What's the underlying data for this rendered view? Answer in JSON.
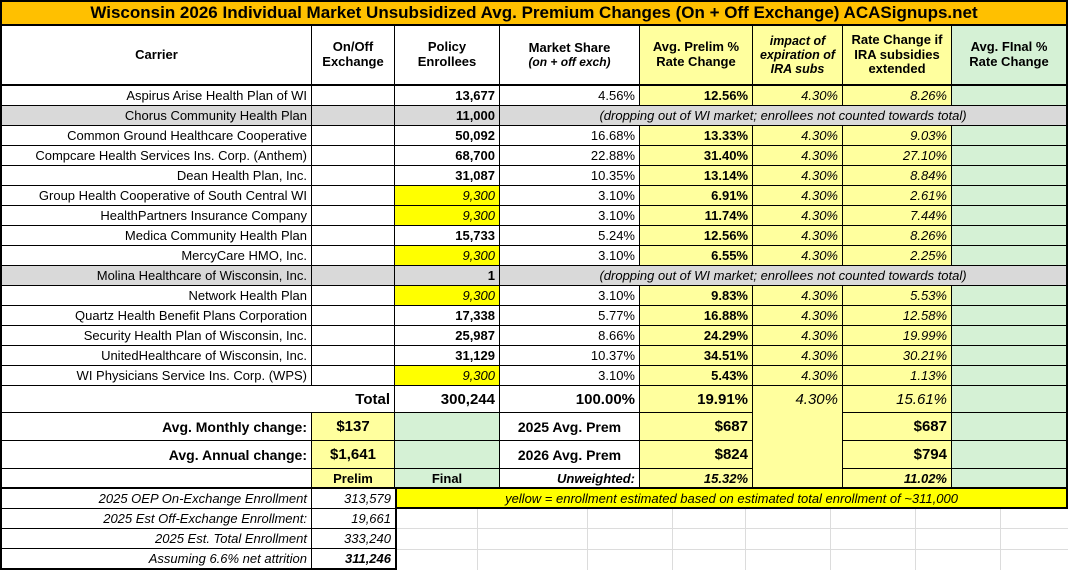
{
  "title": "Wisconsin 2026 Individual Market Unsubsidized Avg. Premium Changes (On + Off Exchange) ACASignups.net",
  "colors": {
    "title_bar": "#FFC000",
    "light_yellow": "#FFFF9E",
    "bright_yellow": "#FFFF00",
    "pale_green": "#D5F1D5",
    "row_gray": "#D9D9D9"
  },
  "columns": {
    "carrier": "Carrier",
    "onoff": "On/Off Exchange",
    "enrollees": "Policy Enrollees",
    "share_main": "Market Share",
    "share_sub": "(on + off exch)",
    "prelim": "Avg. Prelim % Rate Change",
    "impact": "impact of expiration of IRA subs",
    "extended": "Rate Change if IRA subsidies extended",
    "final": "Avg. FInal % Rate Change"
  },
  "dropped_note": "(dropping out of WI market; enrollees not counted towards total)",
  "rows": [
    {
      "carrier": "Aspirus Arise Health Plan of WI",
      "enrollees": "13,677",
      "share": "4.56%",
      "prelim": "12.56%",
      "impact": "4.30%",
      "extended": "8.26%"
    },
    {
      "carrier": "Chorus Community Health Plan",
      "enrollees": "11,000",
      "dropped": true,
      "comment": true
    },
    {
      "carrier": "Common Ground Healthcare Cooperative",
      "enrollees": "50,092",
      "share": "16.68%",
      "prelim": "13.33%",
      "impact": "4.30%",
      "extended": "9.03%"
    },
    {
      "carrier": "Compcare Health Services Ins. Corp. (Anthem)",
      "enrollees": "68,700",
      "share": "22.88%",
      "prelim": "31.40%",
      "impact": "4.30%",
      "extended": "27.10%"
    },
    {
      "carrier": "Dean Health Plan, Inc.",
      "enrollees": "31,087",
      "share": "10.35%",
      "prelim": "13.14%",
      "impact": "4.30%",
      "extended": "8.84%"
    },
    {
      "carrier": "Group Health Cooperative of South Central WI",
      "enrollees": "9,300",
      "est": true,
      "share": "3.10%",
      "prelim": "6.91%",
      "impact": "4.30%",
      "extended": "2.61%"
    },
    {
      "carrier": "HealthPartners Insurance Company",
      "enrollees": "9,300",
      "est": true,
      "share": "3.10%",
      "prelim": "11.74%",
      "impact": "4.30%",
      "extended": "7.44%"
    },
    {
      "carrier": "Medica Community Health Plan",
      "enrollees": "15,733",
      "share": "5.24%",
      "prelim": "12.56%",
      "impact": "4.30%",
      "extended": "8.26%"
    },
    {
      "carrier": "MercyCare HMO, Inc.",
      "enrollees": "9,300",
      "est": true,
      "share": "3.10%",
      "prelim": "6.55%",
      "impact": "4.30%",
      "extended": "2.25%"
    },
    {
      "carrier": "Molina Healthcare of Wisconsin, Inc.",
      "enrollees": "1",
      "dropped": true
    },
    {
      "carrier": "Network Health Plan",
      "enrollees": "9,300",
      "est": true,
      "share": "3.10%",
      "prelim": "9.83%",
      "impact": "4.30%",
      "extended": "5.53%"
    },
    {
      "carrier": "Quartz Health Benefit Plans Corporation",
      "enrollees": "17,338",
      "share": "5.77%",
      "prelim": "16.88%",
      "impact": "4.30%",
      "extended": "12.58%"
    },
    {
      "carrier": "Security Health Plan of Wisconsin, Inc.",
      "enrollees": "25,987",
      "share": "8.66%",
      "prelim": "24.29%",
      "impact": "4.30%",
      "extended": "19.99%"
    },
    {
      "carrier": "UnitedHealthcare of Wisconsin, Inc.",
      "enrollees": "31,129",
      "share": "10.37%",
      "prelim": "34.51%",
      "impact": "4.30%",
      "extended": "30.21%"
    },
    {
      "carrier": "WI Physicians Service Ins. Corp. (WPS)",
      "enrollees": "9,300",
      "est": true,
      "share": "3.10%",
      "prelim": "5.43%",
      "impact": "4.30%",
      "extended": "1.13%"
    }
  ],
  "total": {
    "label": "Total",
    "enrollees": "300,244",
    "share": "100.00%",
    "prelim": "19.91%",
    "impact": "4.30%",
    "extended": "15.61%"
  },
  "summary": {
    "monthly_label": "Avg. Monthly change:",
    "monthly": "$137",
    "annual_label": "Avg. Annual change:",
    "annual": "$1,641",
    "prelim_label": "Prelim",
    "final_label": "Final",
    "prem2025_label": "2025 Avg. Prem",
    "prem2025_prelim": "$687",
    "prem2025_ext": "$687",
    "prem2026_label": "2026 Avg. Prem",
    "prem2026_prelim": "$824",
    "prem2026_ext": "$794",
    "unweighted_label": "Unweighted:",
    "unweighted_prelim": "15.32%",
    "unweighted_ext": "11.02%"
  },
  "footer": {
    "rows": [
      {
        "label": "2025 OEP On-Exchange Enrollment",
        "value": "313,579"
      },
      {
        "label": "2025 Est Off-Exchange Enrollment:",
        "value": "19,661"
      },
      {
        "label": "2025 Est. Total Enrollment",
        "value": "333,240"
      },
      {
        "label": "Assuming 6.6% net attrition",
        "value": "311,246",
        "bold": true
      }
    ],
    "note": "yellow = enrollment estimated based on estimated total enrollment of ~311,000"
  }
}
